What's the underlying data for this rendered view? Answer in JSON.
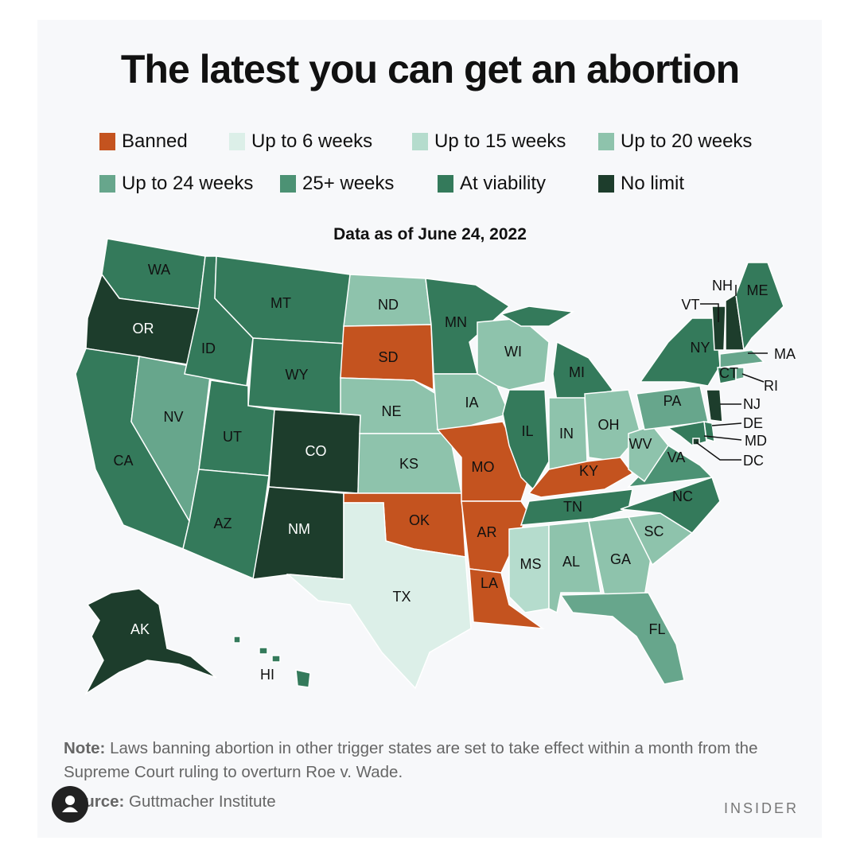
{
  "title": "The latest you can get an abortion",
  "subtitle": "Data as of June 24, 2022",
  "legend": [
    {
      "key": "banned",
      "label": "Banned",
      "color": "#c4531f"
    },
    {
      "key": "w6",
      "label": "Up to 6 weeks",
      "color": "#dcefe8"
    },
    {
      "key": "w15",
      "label": "Up to 15 weeks",
      "color": "#b5dccd"
    },
    {
      "key": "w20",
      "label": "Up to 20 weeks",
      "color": "#8ec3ac"
    },
    {
      "key": "w24",
      "label": "Up to 24 weeks",
      "color": "#67a68c"
    },
    {
      "key": "w25",
      "label": "25+ weeks",
      "color": "#4c9274"
    },
    {
      "key": "viab",
      "label": "At viability",
      "color": "#347a5b"
    },
    {
      "key": "none",
      "label": "No limit",
      "color": "#1d3d2c"
    }
  ],
  "states": [
    {
      "abbr": "WA",
      "cat": "viab"
    },
    {
      "abbr": "OR",
      "cat": "none"
    },
    {
      "abbr": "CA",
      "cat": "viab"
    },
    {
      "abbr": "NV",
      "cat": "w24"
    },
    {
      "abbr": "ID",
      "cat": "viab"
    },
    {
      "abbr": "MT",
      "cat": "viab"
    },
    {
      "abbr": "WY",
      "cat": "viab"
    },
    {
      "abbr": "UT",
      "cat": "viab"
    },
    {
      "abbr": "AZ",
      "cat": "viab"
    },
    {
      "abbr": "CO",
      "cat": "none"
    },
    {
      "abbr": "NM",
      "cat": "none"
    },
    {
      "abbr": "ND",
      "cat": "w20"
    },
    {
      "abbr": "SD",
      "cat": "banned"
    },
    {
      "abbr": "NE",
      "cat": "w20"
    },
    {
      "abbr": "KS",
      "cat": "w20"
    },
    {
      "abbr": "OK",
      "cat": "banned"
    },
    {
      "abbr": "TX",
      "cat": "w6"
    },
    {
      "abbr": "MN",
      "cat": "viab"
    },
    {
      "abbr": "IA",
      "cat": "w20"
    },
    {
      "abbr": "MO",
      "cat": "banned"
    },
    {
      "abbr": "AR",
      "cat": "banned"
    },
    {
      "abbr": "LA",
      "cat": "banned"
    },
    {
      "abbr": "WI",
      "cat": "w20"
    },
    {
      "abbr": "IL",
      "cat": "viab"
    },
    {
      "abbr": "MI",
      "cat": "viab"
    },
    {
      "abbr": "IN",
      "cat": "w20"
    },
    {
      "abbr": "OH",
      "cat": "w20"
    },
    {
      "abbr": "KY",
      "cat": "banned"
    },
    {
      "abbr": "TN",
      "cat": "viab"
    },
    {
      "abbr": "MS",
      "cat": "w15"
    },
    {
      "abbr": "AL",
      "cat": "w20"
    },
    {
      "abbr": "GA",
      "cat": "w20"
    },
    {
      "abbr": "FL",
      "cat": "w24"
    },
    {
      "abbr": "SC",
      "cat": "w20"
    },
    {
      "abbr": "NC",
      "cat": "viab"
    },
    {
      "abbr": "VA",
      "cat": "w25"
    },
    {
      "abbr": "WV",
      "cat": "w20"
    },
    {
      "abbr": "PA",
      "cat": "w24"
    },
    {
      "abbr": "NY",
      "cat": "viab"
    },
    {
      "abbr": "VT",
      "cat": "none"
    },
    {
      "abbr": "NH",
      "cat": "none"
    },
    {
      "abbr": "ME",
      "cat": "viab"
    },
    {
      "abbr": "MA",
      "cat": "w24"
    },
    {
      "abbr": "CT",
      "cat": "viab"
    },
    {
      "abbr": "RI",
      "cat": "w24"
    },
    {
      "abbr": "NJ",
      "cat": "none"
    },
    {
      "abbr": "DE",
      "cat": "viab"
    },
    {
      "abbr": "MD",
      "cat": "viab"
    },
    {
      "abbr": "DC",
      "cat": "none"
    },
    {
      "abbr": "AK",
      "cat": "none"
    },
    {
      "abbr": "HI",
      "cat": "viab"
    }
  ],
  "note_label": "Note:",
  "note_text": " Laws banning abortion in other trigger states are set to take effect within a month from the Supreme Court ruling to overturn Roe v. Wade.",
  "source_label": "Source:",
  "source_text": " Guttmacher Institute",
  "brand": "INSIDER"
}
